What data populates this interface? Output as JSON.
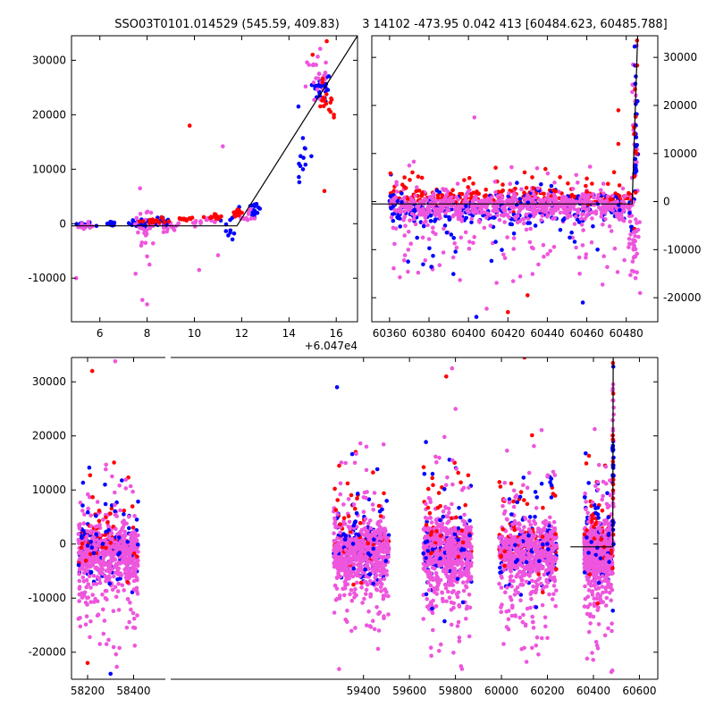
{
  "figure": {
    "title_left": "SSO03T0101.014529 (545.59, 409.83)",
    "title_right": "3 14102 -473.95 0.042 413 [60484.623, 60485.788]"
  },
  "colors": {
    "blue": "#0000ff",
    "red": "#ff0000",
    "pink": "#ee55dd",
    "line": "#000000"
  },
  "chart_data": [
    {
      "id": "top-left",
      "type": "scatter",
      "x_offset_label": "+6.047e4",
      "xlim": [
        4.8,
        16.9
      ],
      "ylim": [
        -18000,
        34500
      ],
      "xticks": [
        6,
        8,
        10,
        12,
        14,
        16
      ],
      "yticks": [
        -10000,
        0,
        10000,
        20000,
        30000
      ],
      "ytick_side": "left",
      "line": {
        "x": [
          4.8,
          11.8,
          16.9
        ],
        "y": [
          -400,
          -400,
          34500
        ]
      },
      "clusters": [
        {
          "x": 5.3,
          "y": -200,
          "sx": 0.2,
          "sy": 300,
          "n": 18,
          "c": "blue"
        },
        {
          "x": 6.5,
          "y": -100,
          "sx": 0.1,
          "sy": 300,
          "n": 15,
          "c": "blue"
        },
        {
          "x": 7.8,
          "y": 100,
          "sx": 0.3,
          "sy": 400,
          "n": 30,
          "c": "blue"
        },
        {
          "x": 8.6,
          "y": 300,
          "sx": 0.2,
          "sy": 600,
          "n": 15,
          "c": "blue"
        },
        {
          "x": 11.5,
          "y": -800,
          "sx": 0.15,
          "sy": 1200,
          "n": 10,
          "c": "blue"
        },
        {
          "x": 12.5,
          "y": 2500,
          "sx": 0.15,
          "sy": 1200,
          "n": 20,
          "c": "blue"
        },
        {
          "x": 14.6,
          "y": 12000,
          "sx": 0.15,
          "sy": 2500,
          "n": 12,
          "c": "blue"
        },
        {
          "x": 15.4,
          "y": 25000,
          "sx": 0.2,
          "sy": 1500,
          "n": 30,
          "c": "blue"
        },
        {
          "x": 5.4,
          "y": -400,
          "sx": 0.2,
          "sy": 500,
          "n": 12,
          "c": "pink"
        },
        {
          "x": 7.9,
          "y": -800,
          "sx": 0.25,
          "sy": 2000,
          "n": 25,
          "c": "pink"
        },
        {
          "x": 9.0,
          "y": -700,
          "sx": 0.2,
          "sy": 600,
          "n": 15,
          "c": "pink"
        },
        {
          "x": 10.5,
          "y": 400,
          "sx": 0.3,
          "sy": 400,
          "n": 15,
          "c": "pink"
        },
        {
          "x": 12.2,
          "y": 1200,
          "sx": 0.2,
          "sy": 600,
          "n": 12,
          "c": "pink"
        },
        {
          "x": 15.2,
          "y": 27000,
          "sx": 0.2,
          "sy": 2200,
          "n": 25,
          "c": "pink"
        },
        {
          "x": 8.2,
          "y": 500,
          "sx": 0.3,
          "sy": 300,
          "n": 20,
          "c": "red"
        },
        {
          "x": 9.8,
          "y": 900,
          "sx": 0.2,
          "sy": 200,
          "n": 12,
          "c": "red"
        },
        {
          "x": 10.9,
          "y": 1200,
          "sx": 0.2,
          "sy": 300,
          "n": 12,
          "c": "red"
        },
        {
          "x": 11.8,
          "y": 2000,
          "sx": 0.1,
          "sy": 300,
          "n": 15,
          "c": "red"
        },
        {
          "x": 15.6,
          "y": 23000,
          "sx": 0.2,
          "sy": 2000,
          "n": 15,
          "c": "red"
        }
      ],
      "points": [
        {
          "x": 9.8,
          "y": 18000,
          "c": "red"
        },
        {
          "x": 15.6,
          "y": 33500,
          "c": "red"
        },
        {
          "x": 15.9,
          "y": 20000,
          "c": "red"
        },
        {
          "x": 15.9,
          "y": 19500,
          "c": "red"
        },
        {
          "x": 15.5,
          "y": 6000,
          "c": "red"
        },
        {
          "x": 15.0,
          "y": 31000,
          "c": "red"
        },
        {
          "x": 14.4,
          "y": 21500,
          "c": "blue"
        },
        {
          "x": 5.0,
          "y": -10000,
          "c": "pink"
        },
        {
          "x": 7.7,
          "y": 6500,
          "c": "pink"
        },
        {
          "x": 7.8,
          "y": -14000,
          "c": "pink"
        },
        {
          "x": 8.0,
          "y": -14800,
          "c": "pink"
        },
        {
          "x": 8.0,
          "y": -6000,
          "c": "pink"
        },
        {
          "x": 8.1,
          "y": -7500,
          "c": "pink"
        },
        {
          "x": 10.2,
          "y": -8500,
          "c": "pink"
        },
        {
          "x": 11.2,
          "y": 14200,
          "c": "pink"
        },
        {
          "x": 11.0,
          "y": -5800,
          "c": "pink"
        }
      ]
    },
    {
      "id": "top-right",
      "type": "scatter",
      "xlim": [
        60351,
        60496
      ],
      "ylim": [
        -25000,
        34500
      ],
      "xticks": [
        60360,
        60380,
        60400,
        60420,
        60440,
        60460,
        60480
      ],
      "yticks": [
        -20000,
        -10000,
        0,
        10000,
        20000,
        30000
      ],
      "ytick_side": "right",
      "line": {
        "x": [
          60351,
          60483,
          60485.8
        ],
        "y": [
          -500,
          -500,
          34500
        ]
      },
      "bands": [
        {
          "x0": 60360,
          "x1": 60483,
          "y": 600,
          "sy": 900,
          "n": 240,
          "c": "red"
        },
        {
          "x0": 60360,
          "x1": 60483,
          "y": -1500,
          "sy": 1800,
          "n": 260,
          "c": "blue"
        },
        {
          "x0": 60360,
          "x1": 60483,
          "y": -1000,
          "sy": 1600,
          "n": 600,
          "c": "pink"
        },
        {
          "x0": 60360,
          "x1": 60483,
          "y": -8000,
          "sy": 6000,
          "n": 90,
          "c": "pink"
        },
        {
          "x0": 60360,
          "x1": 60483,
          "y": -6000,
          "sy": 5000,
          "n": 40,
          "c": "blue"
        },
        {
          "x0": 60360,
          "x1": 60483,
          "y": 3500,
          "sy": 2200,
          "n": 40,
          "c": "red"
        },
        {
          "x0": 60360,
          "x1": 60483,
          "y": 4000,
          "sy": 3000,
          "n": 20,
          "c": "pink"
        }
      ],
      "clusters": [
        {
          "x": 60484.5,
          "y": 15000,
          "sx": 0.6,
          "sy": 9000,
          "n": 30,
          "c": "pink"
        },
        {
          "x": 60484.8,
          "y": 12000,
          "sx": 0.5,
          "sy": 9000,
          "n": 25,
          "c": "blue"
        },
        {
          "x": 60484.6,
          "y": 10000,
          "sx": 0.5,
          "sy": 8000,
          "n": 12,
          "c": "red"
        },
        {
          "x": 60484.0,
          "y": -9000,
          "sx": 1.2,
          "sy": 4500,
          "n": 35,
          "c": "pink"
        }
      ],
      "points": [
        {
          "x": 60370,
          "y": 7500,
          "c": "pink"
        },
        {
          "x": 60403,
          "y": 17500,
          "c": "pink"
        },
        {
          "x": 60476,
          "y": 12000,
          "c": "red"
        },
        {
          "x": 60476,
          "y": 19000,
          "c": "red"
        },
        {
          "x": 60420,
          "y": -23000,
          "c": "red"
        },
        {
          "x": 60430,
          "y": -19500,
          "c": "red"
        },
        {
          "x": 60485.5,
          "y": 33500,
          "c": "red"
        },
        {
          "x": 60404,
          "y": -24000,
          "c": "blue"
        },
        {
          "x": 60458,
          "y": -21000,
          "c": "blue"
        }
      ]
    },
    {
      "id": "bottom",
      "type": "scatter",
      "xlim": [
        58130,
        60680
      ],
      "ylim": [
        -25000,
        34500
      ],
      "xtick_values": [
        58200,
        58400,
        59400,
        59600,
        59800,
        60000,
        60200,
        60400,
        60600
      ],
      "xticks": [
        "58200",
        "58400",
        "59400",
        "59600",
        "59800",
        "60000",
        "60200",
        "60400",
        "60600"
      ],
      "yticks": [
        -20000,
        -10000,
        0,
        10000,
        20000,
        30000
      ],
      "ytick_side": "left",
      "axis_break": 58550,
      "line": {
        "x": [
          60300,
          60484,
          60486
        ],
        "y": [
          -500,
          -500,
          34500
        ]
      },
      "seasons": [
        {
          "x0": 58160,
          "x1": 58420
        },
        {
          "x0": 59270,
          "x1": 59510
        },
        {
          "x0": 59660,
          "x1": 59870
        },
        {
          "x0": 59990,
          "x1": 60240
        },
        {
          "x0": 60360,
          "x1": 60484
        }
      ],
      "season_mix": [
        {
          "y": 0,
          "sy": 1200,
          "n": 90,
          "c": "red"
        },
        {
          "y": -1500,
          "sy": 2500,
          "n": 110,
          "c": "blue"
        },
        {
          "y": -1500,
          "sy": 2800,
          "n": 420,
          "c": "pink"
        },
        {
          "y": -7000,
          "sy": 6000,
          "n": 110,
          "c": "pink"
        },
        {
          "y": 5000,
          "sy": 6000,
          "n": 30,
          "c": "red"
        },
        {
          "y": 4000,
          "sy": 6000,
          "n": 30,
          "c": "blue"
        },
        {
          "y": 4000,
          "sy": 7000,
          "n": 40,
          "c": "pink"
        }
      ],
      "clusters": [
        {
          "x": 60485,
          "y": 15000,
          "sx": 1.5,
          "sy": 9000,
          "n": 30,
          "c": "pink"
        },
        {
          "x": 60485,
          "y": 12000,
          "sx": 1.5,
          "sy": 9000,
          "n": 20,
          "c": "blue"
        },
        {
          "x": 60485,
          "y": 12000,
          "sx": 1.5,
          "sy": 9000,
          "n": 12,
          "c": "red"
        }
      ],
      "points": [
        {
          "x": 58220,
          "y": 32000,
          "c": "red"
        },
        {
          "x": 58320,
          "y": 33800,
          "c": "pink"
        },
        {
          "x": 59285,
          "y": 29000,
          "c": "blue"
        },
        {
          "x": 59785,
          "y": 32500,
          "c": "pink"
        },
        {
          "x": 59760,
          "y": 31000,
          "c": "red"
        },
        {
          "x": 60100,
          "y": 34500,
          "c": "red"
        },
        {
          "x": 60485,
          "y": 33500,
          "c": "red"
        },
        {
          "x": 58200,
          "y": -22000,
          "c": "red"
        },
        {
          "x": 58300,
          "y": -24000,
          "c": "blue"
        }
      ]
    }
  ]
}
